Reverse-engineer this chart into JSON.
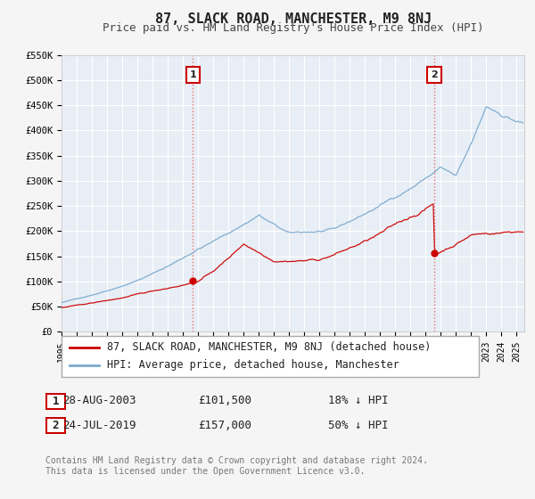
{
  "title": "87, SLACK ROAD, MANCHESTER, M9 8NJ",
  "subtitle": "Price paid vs. HM Land Registry's House Price Index (HPI)",
  "ylim": [
    0,
    550000
  ],
  "xlim_start": 1995.0,
  "xlim_end": 2025.5,
  "yticks": [
    0,
    50000,
    100000,
    150000,
    200000,
    250000,
    300000,
    350000,
    400000,
    450000,
    500000,
    550000
  ],
  "ytick_labels": [
    "£0",
    "£50K",
    "£100K",
    "£150K",
    "£200K",
    "£250K",
    "£300K",
    "£350K",
    "£400K",
    "£450K",
    "£500K",
    "£550K"
  ],
  "property_color": "#cc0000",
  "hpi_color": "#7aaad0",
  "marker_color": "#cc0000",
  "vline_color": "#e87070",
  "annotation_box_color": "#cc0000",
  "chart_bg_color": "#e8eef5",
  "grid_color": "#ffffff",
  "fig_bg_color": "#f5f5f5",
  "legend_label_property": "87, SLACK ROAD, MANCHESTER, M9 8NJ (detached house)",
  "legend_label_hpi": "HPI: Average price, detached house, Manchester",
  "transaction1_date": "28-AUG-2003",
  "transaction1_price": "£101,500",
  "transaction1_pct": "18% ↓ HPI",
  "transaction1_year": 2003.66,
  "transaction1_value": 101500,
  "transaction2_date": "24-JUL-2019",
  "transaction2_price": "£157,000",
  "transaction2_pct": "50% ↓ HPI",
  "transaction2_year": 2019.55,
  "transaction2_value": 157000,
  "footer_text": "Contains HM Land Registry data © Crown copyright and database right 2024.\nThis data is licensed under the Open Government Licence v3.0.",
  "title_fontsize": 11,
  "subtitle_fontsize": 9,
  "tick_fontsize": 7.5,
  "legend_fontsize": 8.5,
  "annotation_fontsize": 8,
  "table_fontsize": 9
}
